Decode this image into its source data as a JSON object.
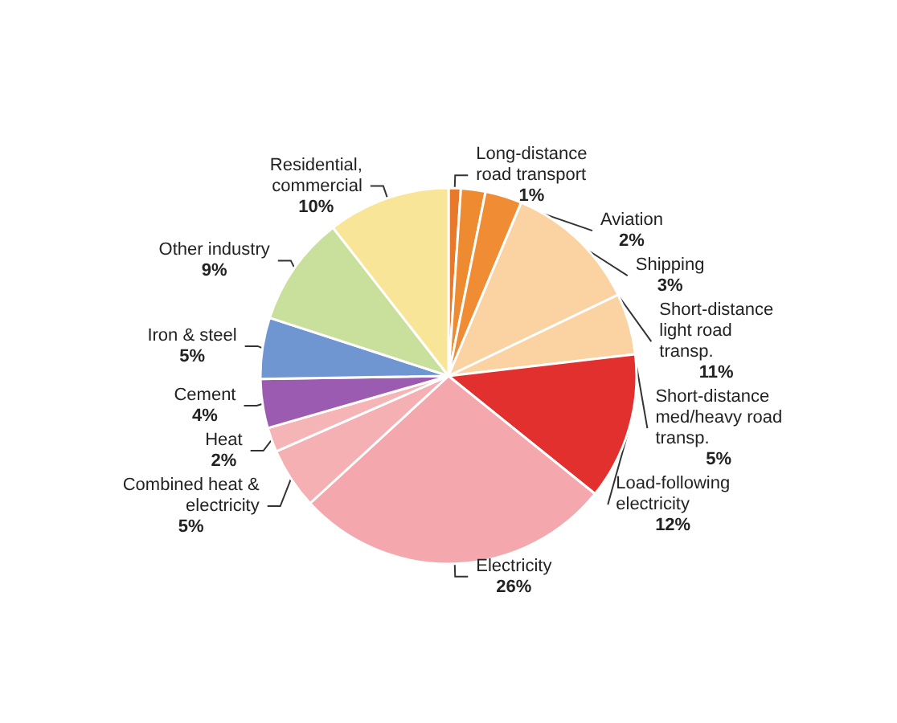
{
  "chart_data": {
    "type": "pie",
    "categories": [
      "Long-distance road transport",
      "Aviation",
      "Shipping",
      "Short-distance light road transp.",
      "Short-distance med/heavy road transp.",
      "Load-following electricity",
      "Electricity",
      "Combined heat & electricity",
      "Heat",
      "Cement",
      "Iron & steel",
      "Other industry",
      "Residential, commercial"
    ],
    "values": [
      1,
      2,
      3,
      11,
      5,
      12,
      26,
      5,
      2,
      4,
      5,
      9,
      10
    ],
    "value_labels": [
      "1%",
      "2%",
      "3%",
      "11%",
      "5%",
      "12%",
      "26%",
      "5%",
      "2%",
      "4%",
      "5%",
      "9%",
      "10%"
    ],
    "colors": [
      "#e8792a",
      "#ee8a30",
      "#f08c34",
      "#fbd3a2",
      "#fbd3a2",
      "#e2302e",
      "#f4a8ad",
      "#f4b0b3",
      "#f5b5b7",
      "#9b5bb0",
      "#6f96d0",
      "#c9e09c",
      "#f9e597"
    ],
    "legend": false
  }
}
